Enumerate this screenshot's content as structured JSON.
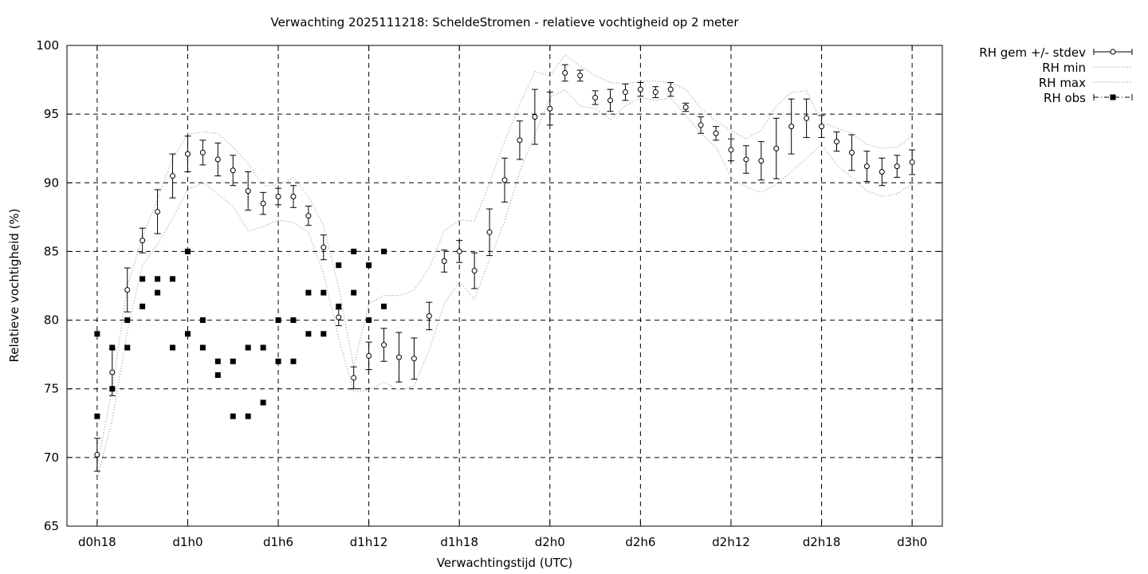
{
  "chart_data": {
    "type": "line",
    "title": "Verwachting 2025111218: ScheldeStromen - relatieve vochtigheid op 2 meter",
    "xlabel": "Verwachtingstijd (UTC)",
    "ylabel": "Relatieve vochtigheid (%)",
    "x_unit": "forecast hours",
    "xlim": [
      16,
      74
    ],
    "ylim": [
      65,
      100
    ],
    "grid": true,
    "legend_position": "outside-right-top",
    "x_ticks": [
      {
        "value": 18,
        "label": "d0h18"
      },
      {
        "value": 24,
        "label": "d1h0"
      },
      {
        "value": 30,
        "label": "d1h6"
      },
      {
        "value": 36,
        "label": "d1h12"
      },
      {
        "value": 42,
        "label": "d1h18"
      },
      {
        "value": 48,
        "label": "d2h0"
      },
      {
        "value": 54,
        "label": "d2h6"
      },
      {
        "value": 60,
        "label": "d2h12"
      },
      {
        "value": 66,
        "label": "d2h18"
      },
      {
        "value": 72,
        "label": "d3h0"
      }
    ],
    "y_ticks": [
      65,
      70,
      75,
      80,
      85,
      90,
      95,
      100
    ],
    "x": [
      18,
      19,
      20,
      21,
      22,
      23,
      24,
      25,
      26,
      27,
      28,
      29,
      30,
      31,
      32,
      33,
      34,
      35,
      36,
      37,
      38,
      39,
      40,
      41,
      42,
      43,
      44,
      45,
      46,
      47,
      48,
      49,
      50,
      51,
      52,
      53,
      54,
      55,
      56,
      57,
      58,
      59,
      60,
      61,
      62,
      63,
      64,
      65,
      66,
      67,
      68,
      69,
      70,
      71,
      72
    ],
    "series": [
      {
        "name": "RH gem +/- stdev",
        "style": "errorbars",
        "mean": [
          70.2,
          76.2,
          82.2,
          85.8,
          87.9,
          90.5,
          92.1,
          92.2,
          91.7,
          90.9,
          89.4,
          88.5,
          89.0,
          89.0,
          87.6,
          85.3,
          80.2,
          75.8,
          77.4,
          78.2,
          77.3,
          77.2,
          80.3,
          84.3,
          85.0,
          83.6,
          86.4,
          90.2,
          93.1,
          94.8,
          95.4,
          98.0,
          97.8,
          96.2,
          96.0,
          96.6,
          96.8,
          96.6,
          96.8,
          95.5,
          94.2,
          93.6,
          92.4,
          91.7,
          91.6,
          92.5,
          94.1,
          94.7,
          94.1,
          93.0,
          92.2,
          91.2,
          90.8,
          91.2,
          91.5
        ],
        "stdev": [
          1.2,
          1.7,
          1.6,
          0.9,
          1.6,
          1.6,
          1.3,
          0.9,
          1.2,
          1.1,
          1.4,
          0.8,
          0.6,
          0.8,
          0.7,
          0.9,
          0.6,
          0.8,
          1.0,
          1.2,
          1.8,
          1.5,
          1.0,
          0.8,
          0.8,
          1.3,
          1.7,
          1.6,
          1.4,
          2.0,
          1.2,
          0.6,
          0.4,
          0.5,
          0.8,
          0.6,
          0.5,
          0.4,
          0.5,
          0.3,
          0.6,
          0.5,
          0.8,
          1.0,
          1.4,
          2.2,
          2.0,
          1.4,
          0.8,
          0.7,
          1.3,
          1.1,
          1.0,
          0.8,
          0.9
        ]
      },
      {
        "name": "RH min",
        "style": "dotted",
        "values": [
          68.5,
          72.7,
          79.2,
          84.0,
          85.5,
          87.4,
          89.5,
          90.0,
          89.2,
          88.3,
          86.5,
          86.8,
          87.3,
          87.1,
          86.4,
          83.4,
          78.7,
          74.8,
          74.9,
          75.5,
          74.9,
          75.2,
          77.8,
          81.2,
          82.8,
          81.5,
          84.4,
          87.2,
          90.8,
          93.5,
          96.2,
          96.8,
          95.6,
          95.4,
          94.6,
          95.6,
          96.2,
          96.0,
          96.2,
          94.9,
          93.6,
          92.6,
          90.4,
          89.7,
          89.3,
          89.9,
          90.8,
          91.8,
          92.8,
          91.3,
          90.4,
          89.4,
          89.0,
          89.2,
          89.9
        ]
      },
      {
        "name": "RH max",
        "style": "dotted",
        "values": [
          69.4,
          75.0,
          82.5,
          86.0,
          88.8,
          91.8,
          93.5,
          93.7,
          93.6,
          92.6,
          91.4,
          89.8,
          89.8,
          90.4,
          89.0,
          86.9,
          82.4,
          76.6,
          81.2,
          81.8,
          81.8,
          82.2,
          83.8,
          86.5,
          87.3,
          87.2,
          90.0,
          93.0,
          95.7,
          98.1,
          97.8,
          99.3,
          98.5,
          97.8,
          97.3,
          97.2,
          97.4,
          97.4,
          97.3,
          96.8,
          95.4,
          94.5,
          93.8,
          93.2,
          93.8,
          95.6,
          96.6,
          96.7,
          94.4,
          94.0,
          93.6,
          92.8,
          92.5,
          92.6,
          93.4
        ]
      },
      {
        "name": "RH obs",
        "style": "points",
        "points": [
          [
            18,
            79
          ],
          [
            18,
            73
          ],
          [
            19,
            78
          ],
          [
            19,
            75
          ],
          [
            20,
            80
          ],
          [
            20,
            78
          ],
          [
            21,
            83
          ],
          [
            21,
            81
          ],
          [
            22,
            83
          ],
          [
            22,
            82
          ],
          [
            23,
            83
          ],
          [
            23,
            78
          ],
          [
            24,
            85
          ],
          [
            24,
            79
          ],
          [
            25,
            80
          ],
          [
            25,
            78
          ],
          [
            26,
            77
          ],
          [
            26,
            76
          ],
          [
            27,
            77
          ],
          [
            27,
            73
          ],
          [
            28,
            78
          ],
          [
            28,
            73
          ],
          [
            29,
            78
          ],
          [
            29,
            74
          ],
          [
            30,
            80
          ],
          [
            30,
            77
          ],
          [
            31,
            80
          ],
          [
            31,
            77
          ],
          [
            32,
            82
          ],
          [
            32,
            79
          ],
          [
            33,
            82
          ],
          [
            33,
            79
          ],
          [
            34,
            84
          ],
          [
            34,
            81
          ],
          [
            35,
            85
          ],
          [
            35,
            82
          ],
          [
            36,
            84
          ],
          [
            36,
            80
          ],
          [
            37,
            85
          ],
          [
            37,
            81
          ]
        ]
      }
    ]
  },
  "legend": [
    {
      "label": "RH gem +/- stdev"
    },
    {
      "label": "RH min"
    },
    {
      "label": "RH max"
    },
    {
      "label": "RH obs"
    }
  ]
}
